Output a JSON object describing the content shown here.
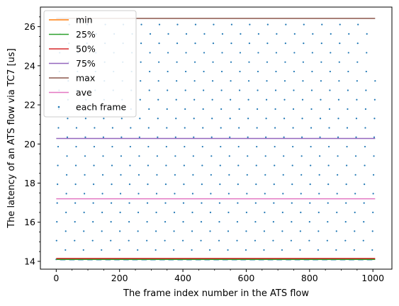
{
  "chart_data": {
    "type": "scatter",
    "xlabel": "The frame index number in the ATS flow",
    "ylabel": "The latency of an ATS flow via TC7 [us]",
    "xlim": [
      -50,
      1060
    ],
    "ylim": [
      13.6,
      27.0
    ],
    "xticks": [
      0,
      200,
      400,
      600,
      800,
      1000
    ],
    "yticks": [
      14,
      16,
      18,
      20,
      22,
      24,
      26
    ],
    "grid": false,
    "legend_position": "top-left",
    "hlines": [
      {
        "name": "min",
        "value": 14.1,
        "color": "#ff7f0e",
        "x_range": [
          0,
          1007
        ]
      },
      {
        "name": "25%",
        "value": 14.1,
        "color": "#2ca02c",
        "x_range": [
          0,
          1007
        ]
      },
      {
        "name": "50%",
        "value": 14.15,
        "color": "#d62728",
        "x_range": [
          0,
          1007
        ]
      },
      {
        "name": "75%",
        "value": 20.28,
        "color": "#9467bd",
        "x_range": [
          0,
          1007
        ]
      },
      {
        "name": "max",
        "value": 26.42,
        "color": "#8c564b",
        "x_range": [
          0,
          1007
        ]
      },
      {
        "name": "ave",
        "value": 17.2,
        "color": "#e377c2",
        "x_range": [
          0,
          1007
        ]
      }
    ],
    "scatter": {
      "name": "each frame",
      "color": "#1f77b4",
      "frame_count": 1008,
      "baseline": 14.1,
      "peak": 26.42,
      "cycle_length": 28.5,
      "rising_phase_fraction": 0.45
    }
  }
}
